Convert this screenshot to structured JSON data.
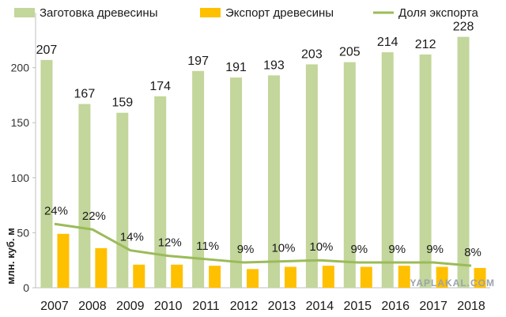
{
  "chart_data": {
    "type": "bar",
    "categories": [
      "2007",
      "2008",
      "2009",
      "2010",
      "2011",
      "2012",
      "2013",
      "2014",
      "2015",
      "2016",
      "2017",
      "2018"
    ],
    "series": [
      {
        "name": "Заготовка древесины",
        "type": "bar",
        "color": "#c3d69b",
        "values": [
          207,
          167,
          159,
          174,
          197,
          191,
          193,
          203,
          205,
          214,
          212,
          228
        ]
      },
      {
        "name": "Экспорт древесины",
        "type": "bar",
        "color": "#ffc000",
        "values": [
          49,
          36,
          21,
          21,
          20,
          17,
          19,
          20,
          19,
          20,
          19,
          18
        ]
      },
      {
        "name": "Доля экспорта",
        "type": "line",
        "color": "#9bbb59",
        "values": [
          24,
          22,
          14,
          12,
          11,
          9,
          10,
          10,
          9,
          9,
          9,
          8
        ],
        "labels": [
          "24%",
          "22%",
          "14%",
          "12%",
          "11%",
          "9%",
          "10%",
          "10%",
          "9%",
          "9%",
          "9%",
          "8%"
        ],
        "plotted_values": [
          58,
          53,
          34,
          29,
          26,
          23,
          24,
          25,
          23,
          23,
          23,
          20
        ]
      }
    ],
    "ylabel": "млн. куб. м",
    "ylim": [
      0,
      250
    ],
    "yticks": [
      0,
      50,
      100,
      150,
      200
    ],
    "grid": false,
    "legend": "top"
  },
  "watermark": "YAPLAKAL.COM"
}
